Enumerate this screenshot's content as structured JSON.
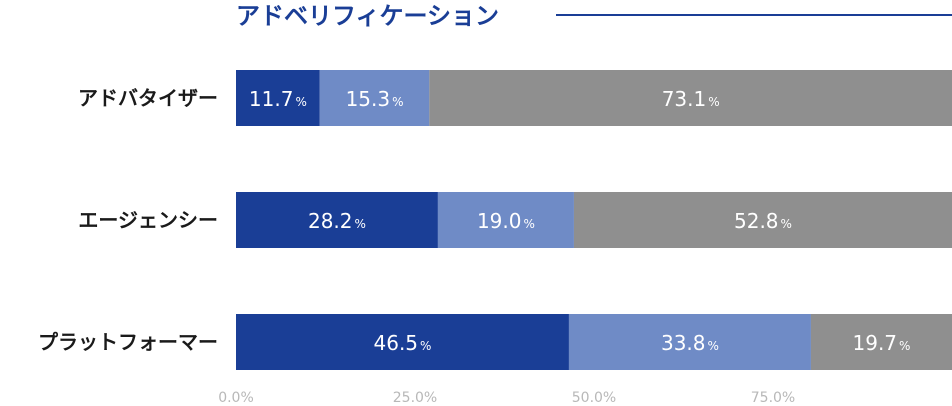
{
  "chart_data": {
    "type": "bar",
    "orientation": "horizontal",
    "stacked": true,
    "title": "アドベリフィケーション",
    "categories": [
      "アドバタイザー",
      "エージェンシー",
      "プラットフォーマー"
    ],
    "series": [
      {
        "values": [
          11.7,
          28.2,
          46.5
        ],
        "color": "#1a3e96"
      },
      {
        "values": [
          15.3,
          19.0,
          33.8
        ],
        "color": "#6f8bc6"
      },
      {
        "values": [
          73.1,
          52.8,
          19.7
        ],
        "color": "#8f8f8f"
      }
    ],
    "value_suffix": "%",
    "xlim": [
      0,
      100
    ],
    "xticks": [
      "0.0%",
      "25.0%",
      "50.0%",
      "75.0%"
    ],
    "xtick_values": [
      0,
      25,
      50,
      75
    ],
    "grid": false,
    "legend": "none",
    "title_color": "#1a3e96"
  }
}
